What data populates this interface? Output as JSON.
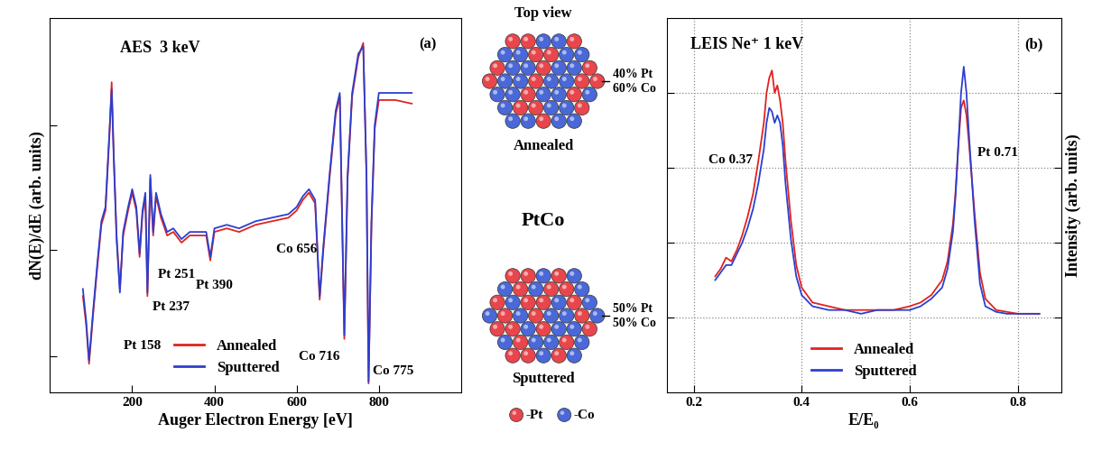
{
  "chart_data": [
    {
      "type": "line",
      "title": "AES  3 keV",
      "xlabel": "Auger Electron Energy [eV]",
      "ylabel": "dN(E)/dE (arb. units)",
      "annotations": [
        "(a)",
        "Pt 158",
        "Pt 237",
        "Pt 251",
        "Pt 390",
        "Co 656",
        "Co 716",
        "Co 775"
      ],
      "x": [
        80,
        88,
        95,
        105,
        115,
        125,
        135,
        145,
        150,
        155,
        162,
        170,
        178,
        190,
        200,
        210,
        218,
        225,
        232,
        237,
        244,
        251,
        258,
        270,
        285,
        300,
        320,
        340,
        360,
        380,
        390,
        400,
        430,
        460,
        500,
        540,
        580,
        600,
        615,
        630,
        645,
        656,
        665,
        680,
        695,
        705,
        716,
        724,
        735,
        750,
        762,
        770,
        775,
        782,
        790,
        800,
        840,
        880
      ],
      "series": [
        {
          "name": "Annealed",
          "color": "#e0231f",
          "values": [
            2.7,
            1.9,
            0.8,
            2.2,
            3.5,
            4.7,
            5.1,
            7.3,
            8.7,
            6.7,
            4.4,
            2.9,
            4.4,
            5.1,
            5.6,
            5.1,
            3.8,
            5.0,
            5.5,
            2.7,
            6.0,
            4.4,
            5.5,
            4.9,
            4.4,
            4.5,
            4.2,
            4.4,
            4.4,
            4.4,
            3.7,
            4.5,
            4.6,
            4.5,
            4.7,
            4.8,
            4.9,
            5.1,
            5.4,
            5.6,
            5.3,
            2.6,
            4.0,
            6.0,
            7.8,
            8.3,
            1.5,
            6.0,
            8.3,
            9.4,
            9.8,
            6.0,
            0.25,
            4.7,
            7.4,
            8.2,
            8.2,
            8.1
          ]
        },
        {
          "name": "Sputtered",
          "color": "#2b3fd0",
          "values": [
            2.9,
            2.0,
            0.9,
            2.3,
            3.6,
            4.8,
            5.2,
            7.4,
            8.5,
            6.6,
            4.3,
            2.8,
            4.5,
            5.2,
            5.7,
            5.2,
            3.9,
            5.1,
            5.6,
            2.8,
            6.1,
            4.5,
            5.6,
            5.0,
            4.5,
            4.6,
            4.3,
            4.5,
            4.5,
            4.5,
            3.8,
            4.6,
            4.7,
            4.6,
            4.8,
            4.9,
            5.0,
            5.2,
            5.5,
            5.7,
            5.4,
            2.7,
            4.1,
            6.1,
            7.9,
            8.4,
            1.6,
            6.1,
            8.4,
            9.5,
            9.7,
            6.1,
            0.3,
            4.8,
            7.5,
            8.4,
            8.4,
            8.4
          ]
        }
      ],
      "xlim": [
        0,
        1000
      ],
      "xticks": [
        200,
        400,
        600,
        800
      ],
      "ylim": [
        0,
        10.5
      ],
      "yticks": [
        1,
        4,
        7.5
      ],
      "grid": false,
      "legend": "lower center",
      "tick_labels": "x"
    },
    {
      "type": "line",
      "title": "LEIS Ne⁺ 1 keV",
      "xlabel": "E/E₀",
      "ylabel": "Intensity (arb. units)",
      "annotations": [
        "(b)",
        "Co 0.37",
        "Pt 0.71"
      ],
      "x": [
        0.24,
        0.25,
        0.26,
        0.27,
        0.28,
        0.29,
        0.3,
        0.31,
        0.32,
        0.33,
        0.335,
        0.34,
        0.345,
        0.35,
        0.355,
        0.36,
        0.365,
        0.37,
        0.38,
        0.39,
        0.4,
        0.42,
        0.45,
        0.48,
        0.51,
        0.54,
        0.57,
        0.6,
        0.62,
        0.64,
        0.66,
        0.67,
        0.68,
        0.685,
        0.69,
        0.695,
        0.7,
        0.705,
        0.71,
        0.72,
        0.73,
        0.74,
        0.76,
        0.78,
        0.8,
        0.82,
        0.84
      ],
      "series": [
        {
          "name": "Annealed",
          "color": "#e0231f",
          "values": [
            0.31,
            0.33,
            0.36,
            0.35,
            0.38,
            0.42,
            0.47,
            0.53,
            0.62,
            0.72,
            0.8,
            0.84,
            0.86,
            0.8,
            0.82,
            0.78,
            0.72,
            0.62,
            0.46,
            0.34,
            0.28,
            0.24,
            0.23,
            0.22,
            0.22,
            0.22,
            0.22,
            0.23,
            0.24,
            0.26,
            0.3,
            0.35,
            0.45,
            0.54,
            0.66,
            0.76,
            0.78,
            0.74,
            0.66,
            0.48,
            0.32,
            0.25,
            0.22,
            0.215,
            0.21,
            0.21,
            0.21
          ]
        },
        {
          "name": "Sputtered",
          "color": "#2b3fd0",
          "values": [
            0.3,
            0.32,
            0.34,
            0.34,
            0.37,
            0.4,
            0.44,
            0.49,
            0.56,
            0.65,
            0.72,
            0.76,
            0.75,
            0.72,
            0.74,
            0.72,
            0.66,
            0.56,
            0.41,
            0.31,
            0.26,
            0.23,
            0.22,
            0.22,
            0.21,
            0.22,
            0.22,
            0.22,
            0.23,
            0.25,
            0.28,
            0.33,
            0.43,
            0.53,
            0.66,
            0.8,
            0.87,
            0.8,
            0.68,
            0.46,
            0.29,
            0.23,
            0.215,
            0.21,
            0.21,
            0.21,
            0.21
          ]
        }
      ],
      "xlim": [
        0.15,
        0.88
      ],
      "xticks": [
        0.2,
        0.4,
        0.6,
        0.8
      ],
      "ylim": [
        0,
        1
      ],
      "yticks": [
        0.2,
        0.4,
        0.6,
        0.8
      ],
      "grid": true,
      "legend": "lower center",
      "tick_labels": "x"
    }
  ],
  "diagram": {
    "title": "Top view",
    "center_label": "PtCo",
    "states": [
      {
        "label": "Annealed",
        "composition": [
          {
            "value": 40,
            "label": "40% Pt"
          },
          {
            "value": 60,
            "label": "60% Co"
          }
        ]
      },
      {
        "label": "Sputtered",
        "composition": [
          {
            "value": 50,
            "label": "50% Pt"
          },
          {
            "value": 50,
            "label": "50% Co"
          }
        ]
      }
    ],
    "key": [
      {
        "label": "-Pt",
        "color": "#e8464c"
      },
      {
        "label": "-Co",
        "color": "#4a68d8"
      }
    ]
  }
}
